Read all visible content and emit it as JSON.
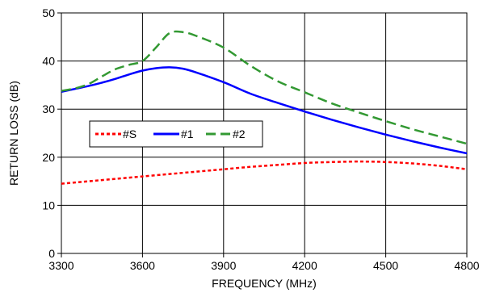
{
  "chart_data": {
    "type": "line",
    "xlabel": "FREQUENCY (MHz)",
    "ylabel": "RETURN LOSS (dB)",
    "xlim": [
      3300,
      4800
    ],
    "ylim": [
      0,
      50
    ],
    "x_ticks": [
      3300,
      3600,
      3900,
      4200,
      4500,
      4800
    ],
    "y_ticks": [
      0,
      10,
      20,
      30,
      40,
      50
    ],
    "x_tick_labels": [
      "3300",
      "3600",
      "3900",
      "4200",
      "4500",
      "4800"
    ],
    "y_tick_labels": [
      "0",
      "10",
      "20",
      "30",
      "40",
      "50"
    ],
    "grid": true,
    "legend_position": "center-left",
    "series": [
      {
        "name": "#S",
        "color": "#ff0000",
        "style": "dotted",
        "x": [
          3300,
          3400,
          3500,
          3600,
          3700,
          3800,
          3900,
          4000,
          4100,
          4200,
          4300,
          4400,
          4500,
          4600,
          4700,
          4800
        ],
        "y": [
          14.5,
          15.0,
          15.5,
          16.0,
          16.5,
          17.0,
          17.5,
          18.0,
          18.4,
          18.8,
          19.0,
          19.1,
          19.0,
          18.7,
          18.2,
          17.5
        ]
      },
      {
        "name": "#1",
        "color": "#0000ff",
        "style": "solid",
        "x": [
          3300,
          3350,
          3400,
          3450,
          3500,
          3550,
          3600,
          3650,
          3700,
          3750,
          3800,
          3900,
          4000,
          4100,
          4200,
          4300,
          4400,
          4500,
          4600,
          4700,
          4800
        ],
        "y": [
          33.6,
          34.2,
          34.8,
          35.5,
          36.3,
          37.2,
          38.0,
          38.5,
          38.7,
          38.4,
          37.6,
          35.6,
          33.2,
          31.3,
          29.5,
          27.8,
          26.2,
          24.7,
          23.3,
          22.0,
          20.8
        ]
      },
      {
        "name": "#2",
        "color": "#339933",
        "style": "dashed",
        "x": [
          3300,
          3350,
          3400,
          3450,
          3500,
          3550,
          3600,
          3650,
          3700,
          3750,
          3800,
          3900,
          4000,
          4100,
          4200,
          4300,
          4400,
          4500,
          4600,
          4700,
          4800
        ],
        "y": [
          33.8,
          34.3,
          35.2,
          36.8,
          38.3,
          39.2,
          40.0,
          42.8,
          45.8,
          46.0,
          45.2,
          42.8,
          39.0,
          35.8,
          33.5,
          31.2,
          29.3,
          27.5,
          25.8,
          24.3,
          22.8
        ]
      }
    ]
  }
}
